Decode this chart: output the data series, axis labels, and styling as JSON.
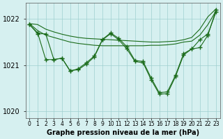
{
  "bg_color": "#d6f0f0",
  "grid_color": "#9ecfcf",
  "line_color": "#1a6b1a",
  "xlabel": "Graphe pression niveau de la mer (hPa)",
  "ylim": [
    1019.85,
    1022.35
  ],
  "yticks": [
    1020,
    1021,
    1022
  ],
  "xticks": [
    0,
    1,
    2,
    3,
    4,
    5,
    6,
    7,
    8,
    9,
    10,
    11,
    12,
    13,
    14,
    15,
    16,
    17,
    18,
    19,
    20,
    21,
    22,
    23
  ],
  "line1": [
    1021.9,
    1021.88,
    1021.78,
    1021.72,
    1021.67,
    1021.63,
    1021.6,
    1021.58,
    1021.57,
    1021.56,
    1021.55,
    1021.54,
    1021.53,
    1021.52,
    1021.51,
    1021.5,
    1021.5,
    1021.51,
    1021.52,
    1021.55,
    1021.6,
    1021.78,
    1022.05,
    1022.22
  ],
  "line2": [
    1021.9,
    1021.75,
    1021.65,
    1021.6,
    1021.55,
    1021.5,
    1021.47,
    1021.45,
    1021.43,
    1021.42,
    1021.42,
    1021.42,
    1021.42,
    1021.42,
    1021.42,
    1021.43,
    1021.43,
    1021.44,
    1021.46,
    1021.5,
    1021.52,
    1021.65,
    1021.88,
    1022.18
  ],
  "line3": [
    1021.88,
    1021.7,
    1021.12,
    1021.12,
    1021.15,
    1020.88,
    1020.9,
    1021.02,
    1021.18,
    1021.55,
    1021.68,
    1021.55,
    1021.35,
    1021.08,
    1021.05,
    1020.68,
    1020.37,
    1020.38,
    1020.75,
    1021.22,
    1021.35,
    1021.38,
    1021.65,
    1022.2
  ],
  "line4": [
    1021.88,
    1021.68,
    1021.68,
    1021.12,
    1021.15,
    1020.87,
    1020.92,
    1021.05,
    1021.2,
    1021.56,
    1021.7,
    1021.58,
    1021.4,
    1021.1,
    1021.08,
    1020.72,
    1020.4,
    1020.42,
    1020.78,
    1021.25,
    1021.35,
    1021.55,
    1021.68,
    1022.15
  ]
}
